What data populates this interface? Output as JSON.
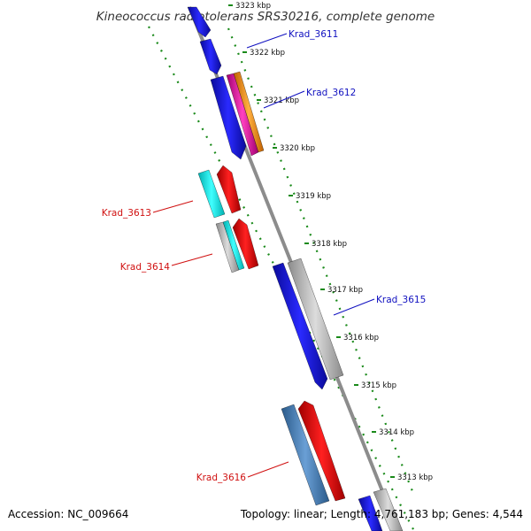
{
  "title": "Kineococcus radiotolerans SRS30216, complete genome",
  "accession": "Accession: NC_009664",
  "stats": "Topology: linear; Length: 4,761,183 bp; Genes: 4,544",
  "ticks": [
    "3323 kbp",
    "3322 kbp",
    "3321 kbp",
    "3320 kbp",
    "3319 kbp",
    "3318 kbp",
    "3317 kbp",
    "3316 kbp",
    "3315 kbp",
    "3314 kbp",
    "3313 kbp"
  ],
  "gene_labels": [
    {
      "text": "Krad_3611",
      "strand": "plus",
      "color": "#1010c0"
    },
    {
      "text": "Krad_3612",
      "strand": "plus",
      "color": "#1010c0"
    },
    {
      "text": "Krad_3613",
      "strand": "minus",
      "color": "#d01010"
    },
    {
      "text": "Krad_3614",
      "strand": "minus",
      "color": "#d01010"
    },
    {
      "text": "Krad_3615",
      "strand": "plus",
      "color": "#1010c0"
    },
    {
      "text": "Krad_3616",
      "strand": "minus",
      "color": "#d01010"
    }
  ],
  "colors": {
    "blue": "#1414e6",
    "magenta": "#e6149a",
    "orange": "#ff8c00",
    "red": "#ee1010",
    "cyan": "#00e0e0",
    "gray": "#b4b4b4",
    "steel": "#4a7fb5",
    "backbone": "#8c8c8c",
    "dotted": "#1a8a1a"
  }
}
